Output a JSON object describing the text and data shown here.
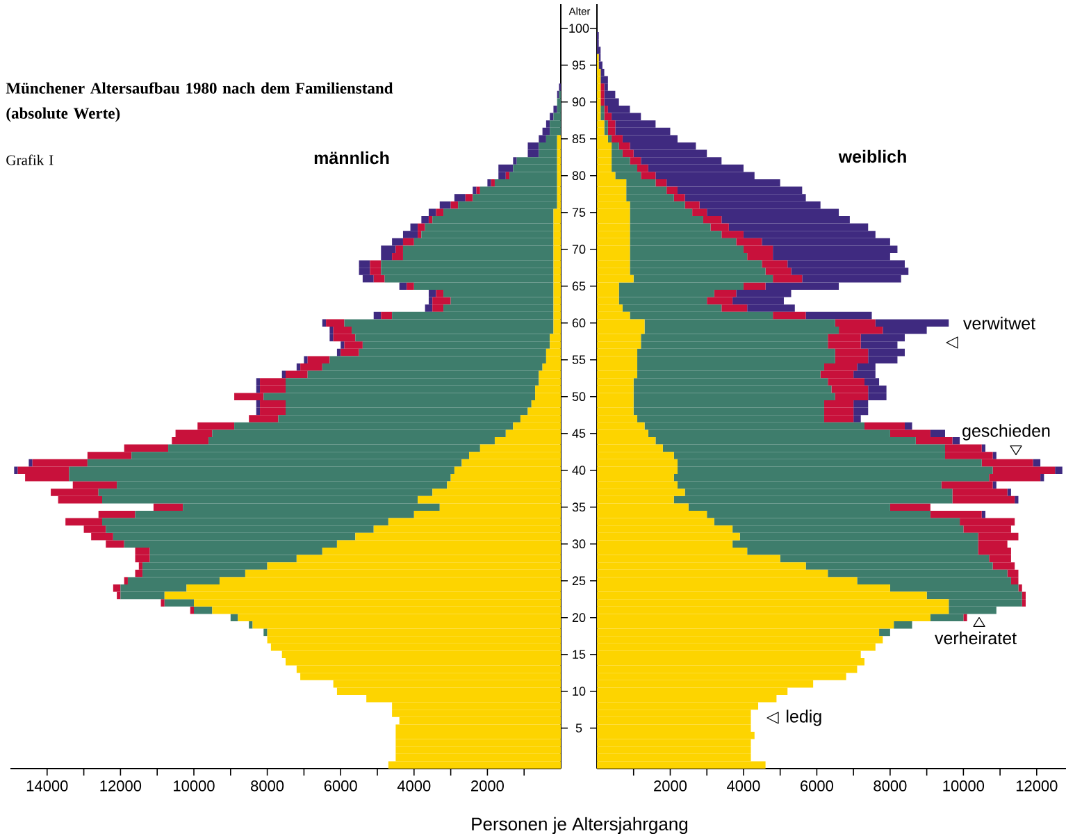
{
  "chart_data": [
    {
      "type": "bar",
      "orientation": "horizontal",
      "stacked": true,
      "title": "männlich",
      "annotations": [
        "Münchener Altersaufbau 1980 nach dem Familienstand (absolute Werte)",
        "Grafik I"
      ],
      "xlabel": "Personen je Altersjahrgang",
      "tick_labels": "x",
      "categories": [
        "100",
        null,
        null,
        null,
        null,
        "95",
        null,
        null,
        null,
        null,
        "90",
        null,
        null,
        null,
        null,
        "85",
        null,
        null,
        null,
        null,
        "80",
        null,
        null,
        null,
        null,
        "75",
        null,
        null,
        null,
        null,
        "70",
        null,
        null,
        null,
        null,
        "65",
        null,
        null,
        null,
        null,
        "60",
        null,
        null,
        null,
        null,
        "55",
        null,
        null,
        null,
        null,
        "50",
        null,
        null,
        null,
        null,
        "45",
        null,
        null,
        null,
        null,
        "40",
        null,
        null,
        null,
        null,
        "35",
        null,
        null,
        null,
        null,
        "30",
        null,
        null,
        null,
        null,
        "25",
        null,
        null,
        null,
        null,
        "20",
        null,
        null,
        null,
        null,
        "15",
        null,
        null,
        null,
        null,
        "10",
        null,
        null,
        null,
        null,
        "5",
        null,
        null,
        null,
        null,
        null
      ],
      "xlim": [
        15000,
        0
      ],
      "xticks": [
        {
          "value": 1000,
          "label": null
        },
        2000,
        {
          "value": 3000,
          "label": null
        },
        4000,
        {
          "value": 5000,
          "label": null
        },
        6000,
        {
          "value": 7000,
          "label": null
        },
        8000,
        {
          "value": 9000,
          "label": null
        },
        10000,
        {
          "value": 11000,
          "label": null
        },
        12000,
        {
          "value": 13000,
          "label": null
        },
        14000
      ],
      "series": [
        {
          "color": "#fdd400",
          "values": [
            0,
            0,
            0,
            0,
            0,
            0,
            0,
            0,
            0,
            0,
            0,
            0,
            0,
            0,
            0,
            100,
            100,
            100,
            100,
            100,
            100,
            100,
            100,
            100,
            100,
            200,
            200,
            200,
            200,
            200,
            200,
            200,
            200,
            200,
            200,
            200,
            200,
            200,
            200,
            200,
            200,
            200,
            300,
            300,
            400,
            400,
            500,
            600,
            600,
            700,
            700,
            800,
            900,
            1100,
            1300,
            1500,
            1800,
            2200,
            2500,
            2700,
            2900,
            3000,
            3100,
            3500,
            3900,
            3300,
            4000,
            4700,
            5100,
            5600,
            6100,
            6500,
            7200,
            8000,
            8600,
            9300,
            10200,
            10800,
            10000,
            9500,
            8800,
            8400,
            8000,
            8000,
            7900,
            7600,
            7500,
            7200,
            7100,
            6200,
            6100,
            5300,
            4600,
            4600,
            4400,
            4500,
            4500,
            4500,
            4500,
            4500,
            4700
          ]
        },
        {
          "color": "#3e7d6c",
          "values": [
            0,
            0,
            0,
            0,
            0,
            0,
            0,
            0,
            0,
            50,
            100,
            100,
            200,
            300,
            300,
            300,
            500,
            500,
            1100,
            1200,
            1300,
            1700,
            2100,
            2300,
            2700,
            3000,
            3300,
            3500,
            3600,
            3800,
            4100,
            4100,
            4700,
            4700,
            4600,
            3800,
            3000,
            2800,
            3000,
            4400,
            5700,
            5500,
            5300,
            5100,
            5100,
            5900,
            6000,
            6300,
            6900,
            6800,
            7400,
            6700,
            6600,
            6600,
            7600,
            8000,
            7800,
            8500,
            9200,
            10200,
            10500,
            10400,
            9000,
            9100,
            8600,
            7000,
            7600,
            7800,
            7300,
            6600,
            5800,
            4700,
            4000,
            3400,
            2800,
            2500,
            1800,
            1200,
            800,
            500,
            200,
            100,
            100,
            0,
            0,
            0,
            0,
            0,
            0,
            0,
            0,
            0,
            0,
            0,
            0,
            0,
            0,
            0,
            0,
            0,
            0
          ]
        },
        {
          "color": "#c8113b",
          "values": [
            0,
            0,
            0,
            0,
            0,
            0,
            0,
            0,
            0,
            0,
            0,
            0,
            0,
            0,
            0,
            0,
            0,
            0,
            0,
            0,
            100,
            100,
            100,
            200,
            200,
            200,
            100,
            200,
            100,
            300,
            200,
            300,
            300,
            300,
            300,
            200,
            200,
            500,
            300,
            300,
            500,
            500,
            600,
            500,
            500,
            600,
            600,
            600,
            700,
            700,
            800,
            700,
            700,
            800,
            1000,
            1000,
            1000,
            1200,
            1200,
            1500,
            1400,
            1200,
            1200,
            1300,
            1200,
            800,
            1000,
            1000,
            600,
            600,
            500,
            400,
            400,
            100,
            200,
            100,
            200,
            100,
            100,
            100,
            0,
            0,
            0,
            0,
            0,
            0,
            0,
            0,
            0,
            0,
            0,
            0,
            0,
            0,
            0,
            0,
            0,
            0,
            0,
            0,
            0
          ]
        },
        {
          "color": "#3f2a80",
          "values": [
            0,
            0,
            0,
            0,
            0,
            0,
            0,
            0,
            50,
            50,
            0,
            100,
            100,
            100,
            200,
            200,
            300,
            300,
            100,
            400,
            200,
            100,
            100,
            300,
            300,
            200,
            200,
            200,
            400,
            300,
            400,
            300,
            300,
            300,
            300,
            200,
            200,
            100,
            200,
            200,
            100,
            100,
            100,
            100,
            100,
            100,
            100,
            100,
            100,
            100,
            0,
            100,
            100,
            0,
            0,
            0,
            0,
            0,
            0,
            100,
            100,
            0,
            0,
            0,
            0,
            0,
            0,
            0,
            0,
            0,
            0,
            0,
            0,
            0,
            0,
            0,
            0,
            0,
            0,
            0,
            0,
            0,
            0,
            0,
            0,
            0,
            0,
            0,
            0,
            0,
            0,
            0,
            0,
            0,
            0,
            0,
            0,
            0,
            0,
            0,
            0
          ]
        }
      ]
    },
    {
      "type": "bar",
      "orientation": "horizontal",
      "stacked": true,
      "title": "weiblich",
      "ylabel": "Alter",
      "categories": [
        "100",
        null,
        null,
        null,
        null,
        "95",
        null,
        null,
        null,
        null,
        "90",
        null,
        null,
        null,
        null,
        "85",
        null,
        null,
        null,
        null,
        "80",
        null,
        null,
        null,
        null,
        "75",
        null,
        null,
        null,
        null,
        "70",
        null,
        null,
        null,
        null,
        "65",
        null,
        null,
        null,
        null,
        "60",
        null,
        null,
        null,
        null,
        "55",
        null,
        null,
        null,
        null,
        "50",
        null,
        null,
        null,
        null,
        "45",
        null,
        null,
        null,
        null,
        "40",
        null,
        null,
        null,
        null,
        "35",
        null,
        null,
        null,
        null,
        "30",
        null,
        null,
        null,
        null,
        "25",
        null,
        null,
        null,
        null,
        "20",
        null,
        null,
        null,
        null,
        "15",
        null,
        null,
        null,
        null,
        "10",
        null,
        null,
        null,
        null,
        "5",
        null,
        null,
        null,
        null,
        null
      ],
      "xlim": [
        0,
        12800
      ],
      "xticks": [
        {
          "value": 1000,
          "label": null
        },
        2000,
        {
          "value": 3000,
          "label": null
        },
        4000,
        {
          "value": 5000,
          "label": null
        },
        6000,
        {
          "value": 7000,
          "label": null
        },
        8000,
        {
          "value": 9000,
          "label": null
        },
        10000,
        {
          "value": 11000,
          "label": null
        },
        12000
      ],
      "series": [
        {
          "name": "ledig",
          "color": "#fdd400",
          "values": [
            0,
            0,
            0,
            0,
            50,
            50,
            100,
            100,
            100,
            100,
            100,
            100,
            100,
            200,
            200,
            300,
            400,
            400,
            400,
            400,
            500,
            800,
            800,
            800,
            900,
            900,
            900,
            900,
            900,
            900,
            900,
            900,
            900,
            900,
            1000,
            600,
            600,
            600,
            700,
            900,
            1300,
            1300,
            1200,
            1200,
            1100,
            1100,
            1100,
            1100,
            1000,
            1000,
            1000,
            1000,
            1000,
            1100,
            1300,
            1400,
            1600,
            1800,
            2100,
            2200,
            2200,
            2100,
            2200,
            2400,
            2100,
            2500,
            3000,
            3200,
            3700,
            3900,
            3700,
            4100,
            5000,
            5700,
            6300,
            7100,
            8000,
            9000,
            9600,
            9600,
            9100,
            8100,
            7700,
            7800,
            7600,
            7200,
            7300,
            7100,
            6800,
            5900,
            5200,
            4900,
            4400,
            4200,
            4200,
            4200,
            4300,
            4200,
            4200,
            4200,
            4600
          ]
        },
        {
          "name": "verheiratet",
          "color": "#3e7d6c",
          "values": [
            0,
            0,
            0,
            0,
            0,
            0,
            0,
            0,
            0,
            0,
            0,
            100,
            100,
            100,
            100,
            100,
            200,
            300,
            500,
            700,
            700,
            800,
            1100,
            1300,
            1500,
            1700,
            2000,
            2200,
            2500,
            2900,
            3100,
            3200,
            3600,
            3700,
            3800,
            3400,
            2600,
            2400,
            2700,
            3900,
            5200,
            5300,
            5100,
            5100,
            5400,
            5400,
            5100,
            5000,
            5300,
            5400,
            5500,
            5200,
            5200,
            5100,
            6000,
            6600,
            7100,
            7700,
            7400,
            8300,
            8600,
            8600,
            7200,
            7300,
            7600,
            5500,
            6100,
            6700,
            6300,
            6500,
            6700,
            6300,
            5700,
            5100,
            4900,
            4200,
            3500,
            2600,
            2000,
            1300,
            900,
            500,
            300,
            0,
            0,
            0,
            0,
            0,
            0,
            0,
            0,
            0,
            0,
            0,
            0,
            0,
            0,
            0,
            0,
            0,
            0
          ]
        },
        {
          "name": "geschieden",
          "color": "#c8113b",
          "values": [
            0,
            0,
            0,
            0,
            0,
            0,
            0,
            0,
            100,
            100,
            100,
            100,
            200,
            200,
            200,
            300,
            300,
            300,
            300,
            300,
            400,
            300,
            300,
            300,
            400,
            400,
            500,
            500,
            600,
            700,
            800,
            700,
            700,
            700,
            800,
            600,
            600,
            700,
            700,
            900,
            1100,
            1200,
            900,
            900,
            900,
            900,
            900,
            900,
            1000,
            1000,
            900,
            800,
            800,
            800,
            1100,
            1100,
            1000,
            1000,
            1300,
            1400,
            1700,
            1400,
            1400,
            1500,
            1700,
            1100,
            1400,
            1500,
            1300,
            1100,
            800,
            900,
            600,
            600,
            300,
            200,
            100,
            100,
            100,
            0,
            100,
            0,
            0,
            0,
            0,
            0,
            0,
            0,
            0,
            0,
            0,
            0,
            0,
            0,
            0,
            0,
            0,
            0,
            0,
            0,
            0
          ]
        },
        {
          "name": "verwitwet",
          "color": "#3f2a80",
          "values": [
            0,
            50,
            50,
            100,
            50,
            100,
            100,
            200,
            100,
            300,
            400,
            600,
            800,
            1100,
            1500,
            1500,
            1800,
            2000,
            2200,
            2600,
            2700,
            3100,
            3400,
            3300,
            3300,
            3600,
            3500,
            3800,
            3600,
            3500,
            3400,
            3200,
            3200,
            3200,
            2700,
            2000,
            1500,
            1400,
            1300,
            1800,
            2000,
            1200,
            1200,
            1000,
            1000,
            800,
            500,
            600,
            400,
            500,
            500,
            400,
            400,
            200,
            200,
            400,
            200,
            100,
            100,
            200,
            200,
            100,
            100,
            100,
            100,
            0,
            100,
            0,
            0,
            0,
            0,
            0,
            0,
            0,
            0,
            0,
            0,
            0,
            0,
            0,
            0,
            0,
            0,
            0,
            0,
            0,
            0,
            0,
            0,
            0,
            0,
            0,
            0,
            0,
            0,
            0,
            0,
            0,
            0,
            0,
            0
          ]
        }
      ]
    }
  ]
}
